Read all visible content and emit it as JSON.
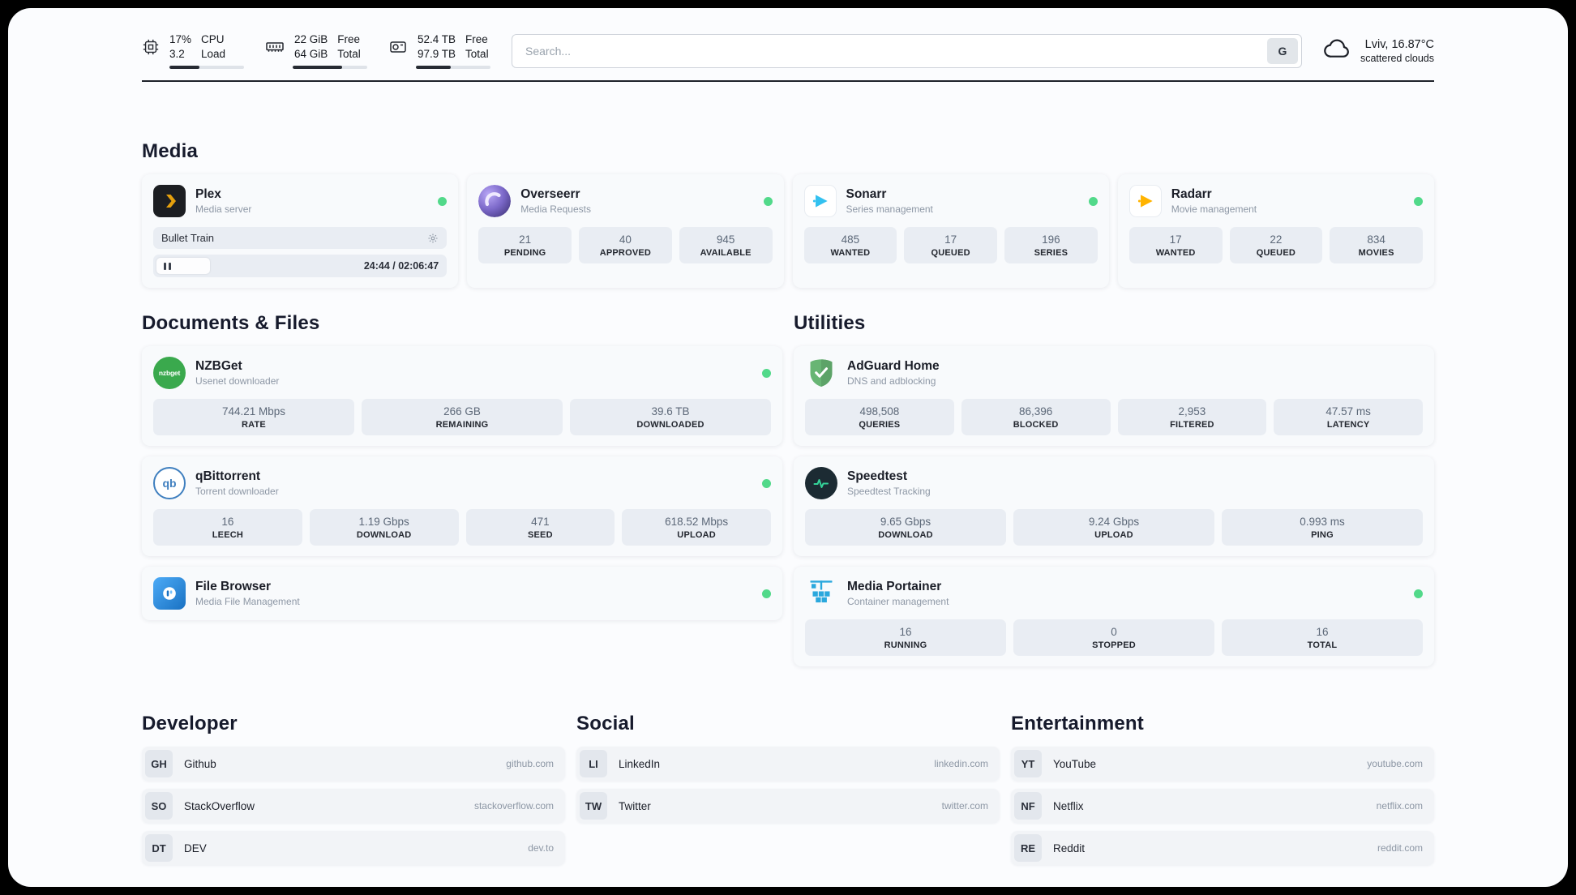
{
  "header": {
    "cpu": {
      "value_top": "17%",
      "value_bottom": "3.2",
      "label_top": "CPU",
      "label_bottom": "Load",
      "progress_pct": 40
    },
    "memory": {
      "value_top": "22 GiB",
      "value_bottom": "64 GiB",
      "label_top": "Free",
      "label_bottom": "Total",
      "progress_pct": 66
    },
    "disk": {
      "value_top": "52.4 TB",
      "value_bottom": "97.9 TB",
      "label_top": "Free",
      "label_bottom": "Total",
      "progress_pct": 47
    },
    "search": {
      "placeholder": "Search...",
      "engine_label": "G"
    },
    "weather": {
      "location": "Lviv, 16.87°C",
      "condition": "scattered clouds"
    }
  },
  "sections": {
    "media": {
      "title": "Media",
      "plex": {
        "name": "Plex",
        "subtitle": "Media server",
        "now_playing": "Bullet Train",
        "time": "24:44 / 02:06:47",
        "progress_pct": 20
      },
      "overseerr": {
        "name": "Overseerr",
        "subtitle": "Media Requests",
        "stats": [
          {
            "value": "21",
            "label": "PENDING"
          },
          {
            "value": "40",
            "label": "APPROVED"
          },
          {
            "value": "945",
            "label": "AVAILABLE"
          }
        ]
      },
      "sonarr": {
        "name": "Sonarr",
        "subtitle": "Series management",
        "stats": [
          {
            "value": "485",
            "label": "WANTED"
          },
          {
            "value": "17",
            "label": "QUEUED"
          },
          {
            "value": "196",
            "label": "SERIES"
          }
        ]
      },
      "radarr": {
        "name": "Radarr",
        "subtitle": "Movie management",
        "stats": [
          {
            "value": "17",
            "label": "WANTED"
          },
          {
            "value": "22",
            "label": "QUEUED"
          },
          {
            "value": "834",
            "label": "MOVIES"
          }
        ]
      }
    },
    "documents": {
      "title": "Documents & Files",
      "nzbget": {
        "name": "NZBGet",
        "subtitle": "Usenet downloader",
        "icon_text": "nzbget",
        "stats": [
          {
            "value": "744.21 Mbps",
            "label": "RATE"
          },
          {
            "value": "266 GB",
            "label": "REMAINING"
          },
          {
            "value": "39.6 TB",
            "label": "DOWNLOADED"
          }
        ]
      },
      "qbittorrent": {
        "name": "qBittorrent",
        "subtitle": "Torrent downloader",
        "icon_text": "qb",
        "stats": [
          {
            "value": "16",
            "label": "LEECH"
          },
          {
            "value": "1.19 Gbps",
            "label": "DOWNLOAD"
          },
          {
            "value": "471",
            "label": "SEED"
          },
          {
            "value": "618.52 Mbps",
            "label": "UPLOAD"
          }
        ]
      },
      "filebrowser": {
        "name": "File Browser",
        "subtitle": "Media File Management"
      }
    },
    "utilities": {
      "title": "Utilities",
      "adguard": {
        "name": "AdGuard Home",
        "subtitle": "DNS and adblocking",
        "stats": [
          {
            "value": "498,508",
            "label": "QUERIES"
          },
          {
            "value": "86,396",
            "label": "BLOCKED"
          },
          {
            "value": "2,953",
            "label": "FILTERED"
          },
          {
            "value": "47.57 ms",
            "label": "LATENCY"
          }
        ]
      },
      "speedtest": {
        "name": "Speedtest",
        "subtitle": "Speedtest Tracking",
        "stats": [
          {
            "value": "9.65 Gbps",
            "label": "DOWNLOAD"
          },
          {
            "value": "9.24 Gbps",
            "label": "UPLOAD"
          },
          {
            "value": "0.993 ms",
            "label": "PING"
          }
        ]
      },
      "portainer": {
        "name": "Media Portainer",
        "subtitle": "Container management",
        "stats": [
          {
            "value": "16",
            "label": "RUNNING"
          },
          {
            "value": "0",
            "label": "STOPPED"
          },
          {
            "value": "16",
            "label": "TOTAL"
          }
        ]
      }
    },
    "bookmarks": [
      {
        "title": "Developer",
        "items": [
          {
            "abbr": "GH",
            "name": "Github",
            "url": "github.com"
          },
          {
            "abbr": "SO",
            "name": "StackOverflow",
            "url": "stackoverflow.com"
          },
          {
            "abbr": "DT",
            "name": "DEV",
            "url": "dev.to"
          }
        ]
      },
      {
        "title": "Social",
        "items": [
          {
            "abbr": "LI",
            "name": "LinkedIn",
            "url": "linkedin.com"
          },
          {
            "abbr": "TW",
            "name": "Twitter",
            "url": "twitter.com"
          }
        ]
      },
      {
        "title": "Entertainment",
        "items": [
          {
            "abbr": "YT",
            "name": "YouTube",
            "url": "youtube.com"
          },
          {
            "abbr": "NF",
            "name": "Netflix",
            "url": "netflix.com"
          },
          {
            "abbr": "RE",
            "name": "Reddit",
            "url": "reddit.com"
          }
        ]
      }
    ]
  },
  "colors": {
    "status_online": "#52d98a",
    "plex_accent": "#e5a00d",
    "sonarr_accent": "#33c1f0",
    "radarr_accent": "#ffb300",
    "adguard_green": "#68b574",
    "speedtest_accent": "#34d399",
    "portainer_blue": "#2aa8dd",
    "nzbget_green": "#3aa94d",
    "qbittorrent_blue": "#3f7fbf",
    "filebrowser_blue": "#2d8fe0"
  }
}
